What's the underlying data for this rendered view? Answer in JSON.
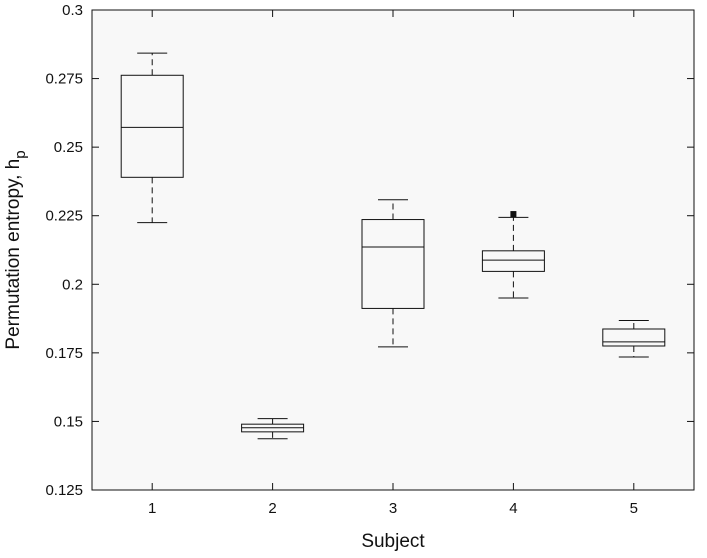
{
  "chart_data": {
    "type": "box",
    "xlabel": "Subject",
    "ylabel_main": "Permutation entropy, h",
    "ylabel_subscript": "p",
    "ylim": [
      0.125,
      0.3
    ],
    "yticks": [
      0.125,
      0.15,
      0.175,
      0.2,
      0.225,
      0.25,
      0.275,
      0.3
    ],
    "ytick_labels": [
      "0.125",
      "0.15",
      "0.175",
      "0.2",
      "0.225",
      "0.25",
      "0.275",
      "0.3"
    ],
    "categories": [
      "1",
      "2",
      "3",
      "4",
      "5"
    ],
    "boxes": [
      {
        "category": "1",
        "whisker_low": 0.2225,
        "q1": 0.239,
        "median": 0.2572,
        "q3": 0.2762,
        "whisker_high": 0.2843,
        "outliers": []
      },
      {
        "category": "2",
        "whisker_low": 0.1437,
        "q1": 0.1462,
        "median": 0.1477,
        "q3": 0.149,
        "whisker_high": 0.151,
        "outliers": []
      },
      {
        "category": "3",
        "whisker_low": 0.1772,
        "q1": 0.1912,
        "median": 0.2136,
        "q3": 0.2236,
        "whisker_high": 0.2308,
        "outliers": []
      },
      {
        "category": "4",
        "whisker_low": 0.195,
        "q1": 0.2047,
        "median": 0.2088,
        "q3": 0.2122,
        "whisker_high": 0.2244,
        "outliers": [
          0.2256
        ]
      },
      {
        "category": "5",
        "whisker_low": 0.1735,
        "q1": 0.1775,
        "median": 0.179,
        "q3": 0.1837,
        "whisker_high": 0.1868,
        "outliers": []
      }
    ],
    "plot_background": "#f8f8f8",
    "line_color": "#111111",
    "grid": false
  }
}
